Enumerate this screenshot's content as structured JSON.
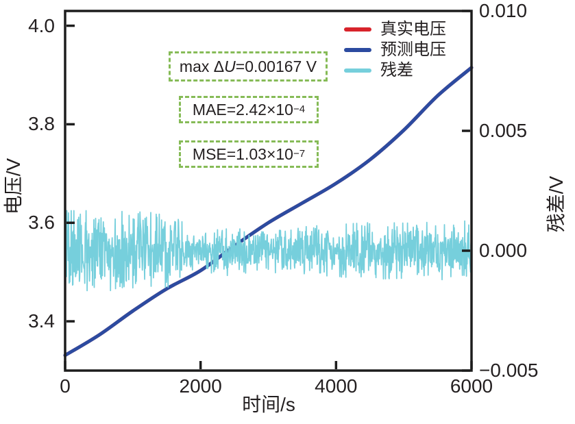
{
  "chart_data": {
    "type": "line",
    "title": "",
    "xlabel": "时间/s",
    "ylabel_left": "电压/V",
    "ylabel_right": "残差/V",
    "xlim": [
      0,
      6000
    ],
    "xticks": [
      {
        "v": 0,
        "label": "0"
      },
      {
        "v": 2000,
        "label": "2000"
      },
      {
        "v": 4000,
        "label": "4000"
      },
      {
        "v": 6000,
        "label": "6000"
      }
    ],
    "ylim_left": [
      3.3,
      4.03
    ],
    "yticks_left": [
      {
        "v": 4.0,
        "label": "4.0"
      },
      {
        "v": 3.8,
        "label": "3.8"
      },
      {
        "v": 3.6,
        "label": "3.6"
      },
      {
        "v": 3.4,
        "label": "3.4"
      }
    ],
    "ylim_right": [
      -0.005,
      0.01
    ],
    "yticks_right": [
      {
        "v": 0.01,
        "label": "0.010"
      },
      {
        "v": 0.005,
        "label": "0.005"
      },
      {
        "v": 0.0,
        "label": "0.000"
      },
      {
        "v": -0.005,
        "label": "−0.005"
      }
    ],
    "grid": false,
    "legend_position": "inside-top-right",
    "series": [
      {
        "name": "真实电压",
        "color": "#d8232b",
        "axis": "left",
        "note": "coincides with the predicted curve and is hidden beneath it in the plot",
        "x": [
          0,
          500,
          1000,
          1500,
          2000,
          2500,
          3000,
          3500,
          4000,
          4500,
          5000,
          5500,
          6000
        ],
        "y": [
          3.331,
          3.372,
          3.421,
          3.466,
          3.503,
          3.553,
          3.6,
          3.64,
          3.68,
          3.728,
          3.788,
          3.858,
          3.915
        ]
      },
      {
        "name": "预测电压",
        "color": "#2c4ba0",
        "axis": "left",
        "x": [
          0,
          500,
          1000,
          1500,
          2000,
          2500,
          3000,
          3500,
          4000,
          4500,
          5000,
          5500,
          6000
        ],
        "y": [
          3.331,
          3.372,
          3.421,
          3.466,
          3.503,
          3.553,
          3.6,
          3.64,
          3.68,
          3.728,
          3.788,
          3.858,
          3.915
        ]
      },
      {
        "name": "残差",
        "color": "#76cfdc",
        "axis": "right",
        "style": "dense-noise-band",
        "mean": 0.0,
        "max_abs": 0.00167,
        "envelope_t": [
          0,
          400,
          800,
          1200,
          1600,
          1800,
          1950,
          2100,
          2400,
          2700,
          3000,
          3300,
          3600,
          3900,
          4200,
          4600,
          5000,
          5400,
          5700,
          6000
        ],
        "envelope_amp": [
          0.00152,
          0.00148,
          0.00143,
          0.0014,
          0.0013,
          0.0009,
          0.00052,
          0.00088,
          0.0009,
          0.0008,
          0.00078,
          0.00084,
          0.0009,
          0.00092,
          0.00098,
          0.00103,
          0.001,
          0.00103,
          0.00107,
          0.00112
        ]
      }
    ],
    "annotations": [
      {
        "pre": "max Δ",
        "it": "U",
        "post": "=0.00167 V",
        "sup": ""
      },
      {
        "pre": "MAE=2.42×10",
        "it": "",
        "post": "",
        "sup": "−4"
      },
      {
        "pre": "MSE=1.03×10",
        "it": "",
        "post": "",
        "sup": "−7"
      }
    ],
    "colors": {
      "axis": "#1d1d1d",
      "text": "#231f20",
      "annotation_box": "#86bb57",
      "background": "#ffffff"
    }
  }
}
